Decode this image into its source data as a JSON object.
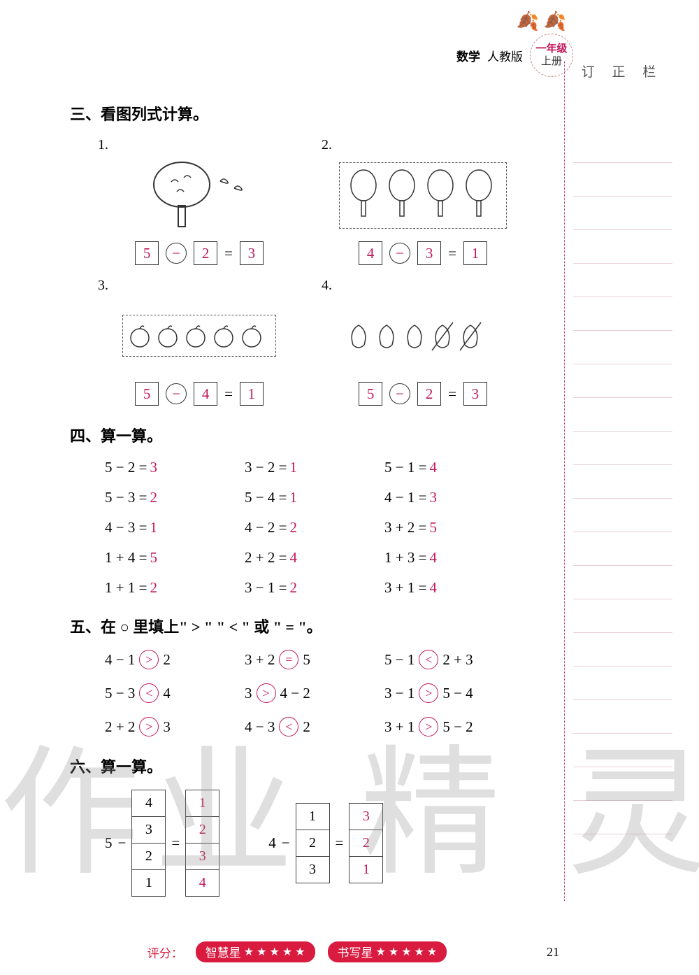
{
  "header": {
    "subject": "数学",
    "edition": "人教版",
    "grade_line1": "一年级",
    "grade_line2": "上册"
  },
  "correction_title": "订 正 栏",
  "section3": {
    "title": "三、看图列式计算。",
    "items": [
      {
        "num": "1.",
        "a": "5",
        "op": "−",
        "b": "2",
        "eq": "=",
        "c": "3"
      },
      {
        "num": "2.",
        "a": "4",
        "op": "−",
        "b": "3",
        "eq": "=",
        "c": "1"
      },
      {
        "num": "3.",
        "a": "5",
        "op": "−",
        "b": "4",
        "eq": "=",
        "c": "1"
      },
      {
        "num": "4.",
        "a": "5",
        "op": "−",
        "b": "2",
        "eq": "=",
        "c": "3"
      }
    ]
  },
  "section4": {
    "title": "四、算一算。",
    "rows": [
      [
        {
          "expr": "5 − 2 =",
          "ans": "3"
        },
        {
          "expr": "3 − 2 =",
          "ans": "1"
        },
        {
          "expr": "5 − 1 =",
          "ans": "4"
        }
      ],
      [
        {
          "expr": "5 − 3 =",
          "ans": "2"
        },
        {
          "expr": "5 − 4 =",
          "ans": "1"
        },
        {
          "expr": "4 − 1 =",
          "ans": "3"
        }
      ],
      [
        {
          "expr": "4 − 3 =",
          "ans": "1"
        },
        {
          "expr": "4 − 2 =",
          "ans": "2"
        },
        {
          "expr": "3 + 2 =",
          "ans": "5"
        }
      ],
      [
        {
          "expr": "1 + 4 =",
          "ans": "5"
        },
        {
          "expr": "2 + 2 =",
          "ans": "4"
        },
        {
          "expr": "1 + 3 =",
          "ans": "4"
        }
      ],
      [
        {
          "expr": "1 + 1 =",
          "ans": "2"
        },
        {
          "expr": "3 − 1 =",
          "ans": "2"
        },
        {
          "expr": "3 + 1 =",
          "ans": "4"
        }
      ]
    ]
  },
  "section5": {
    "title": "五、在 ○ 里填上\" > \" \" < \" 或 \" = \"。",
    "rows": [
      [
        {
          "l": "4 − 1",
          "op": ">",
          "r": "2"
        },
        {
          "l": "3 + 2",
          "op": "=",
          "r": "5"
        },
        {
          "l": "5 − 1",
          "op": "<",
          "r": "2 + 3"
        }
      ],
      [
        {
          "l": "5 − 3",
          "op": "<",
          "r": "4"
        },
        {
          "l": "3",
          "op": ">",
          "r": "4 − 2"
        },
        {
          "l": "3 − 1",
          "op": ">",
          "r": "5 − 4"
        }
      ],
      [
        {
          "l": "2 + 2",
          "op": ">",
          "r": "3"
        },
        {
          "l": "4 − 3",
          "op": "<",
          "r": "2"
        },
        {
          "l": "3 + 1",
          "op": ">",
          "r": "5 − 2"
        }
      ]
    ]
  },
  "section6": {
    "title": "六、算一算。",
    "groups": [
      {
        "minuend": "5",
        "sub": [
          "4",
          "3",
          "2",
          "1"
        ],
        "res": [
          "1",
          "2",
          "3",
          "4"
        ],
        "eq": "=",
        "minus": "−"
      },
      {
        "minuend": "4",
        "sub": [
          "1",
          "2",
          "3"
        ],
        "res": [
          "3",
          "2",
          "1"
        ],
        "eq": "=",
        "minus": "−"
      }
    ]
  },
  "footer": {
    "score_label": "评分：",
    "badge1": "智慧星",
    "badge2": "书写星",
    "stars": 5,
    "page_number": "21"
  },
  "watermark": "作业 精 灵",
  "colors": {
    "answer": "#c2185b",
    "accent": "#d81b3f",
    "ruled_line": "#e6cfd6",
    "text": "#000000"
  }
}
